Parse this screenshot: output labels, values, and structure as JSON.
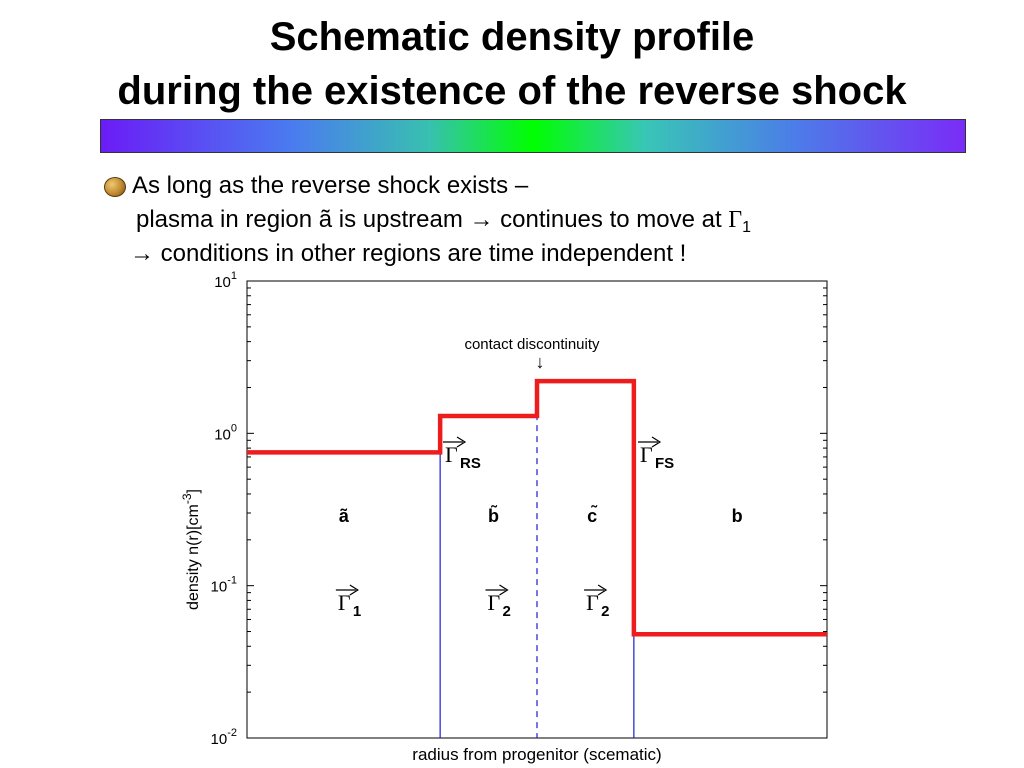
{
  "slide": {
    "title_line1": "Schematic density profile",
    "title_line2": "during the existence of the reverse shock"
  },
  "bullets": {
    "line1": "As long as the reverse shock exists –",
    "line2_text": "plasma in region ã is upstream ",
    "line2_arrow": "→",
    "line2_rest": " continues to move at ",
    "line2_gamma": "Γ",
    "line2_sub": "1",
    "line3_arrow": "→",
    "line3_text": " conditions in other regions are time independent !"
  },
  "colors": {
    "profile": "#ee1c1c",
    "discontinuity": "#1c1cd0"
  },
  "chart_data": {
    "type": "line",
    "title": "",
    "xlabel": "radius from progenitor (scematic)",
    "ylabel": "density n(r)[cm",
    "ylabel_sup": "-3",
    "ylabel_close": "]",
    "yscale": "log",
    "ylim": [
      0.01,
      10
    ],
    "xlim": [
      0,
      100
    ],
    "yticks": [
      {
        "value": 10,
        "base": "10",
        "exp": "1"
      },
      {
        "value": 1,
        "base": "10",
        "exp": "0"
      },
      {
        "value": 0.1,
        "base": "10",
        "exp": "-1"
      },
      {
        "value": 0.01,
        "base": "10",
        "exp": "-2"
      }
    ],
    "series": [
      {
        "x": [
          0,
          33.3,
          33.3,
          50,
          50,
          66.7,
          66.7,
          100
        ],
        "y": [
          0.75,
          0.75,
          1.3,
          1.3,
          2.2,
          2.2,
          0.048,
          0.048
        ]
      }
    ],
    "vertical_lines": [
      {
        "x": 33.3,
        "style": "solid"
      },
      {
        "x": 50,
        "style": "dashed"
      },
      {
        "x": 66.7,
        "style": "solid"
      }
    ],
    "annotations": {
      "contact": "contact discontinuity",
      "contact_arrow": "↓",
      "shock_rs": {
        "gamma": "Γ",
        "sub": "RS"
      },
      "shock_fs": {
        "gamma": "Γ",
        "sub": "FS"
      },
      "regions": [
        {
          "label": "ã",
          "gamma": "Γ",
          "sub": "1"
        },
        {
          "label": "b̃",
          "gamma": "Γ",
          "sub": "2"
        },
        {
          "label": "c̃",
          "gamma": "Γ",
          "sub": "2"
        },
        {
          "label": "b",
          "gamma": "",
          "sub": ""
        }
      ]
    }
  }
}
